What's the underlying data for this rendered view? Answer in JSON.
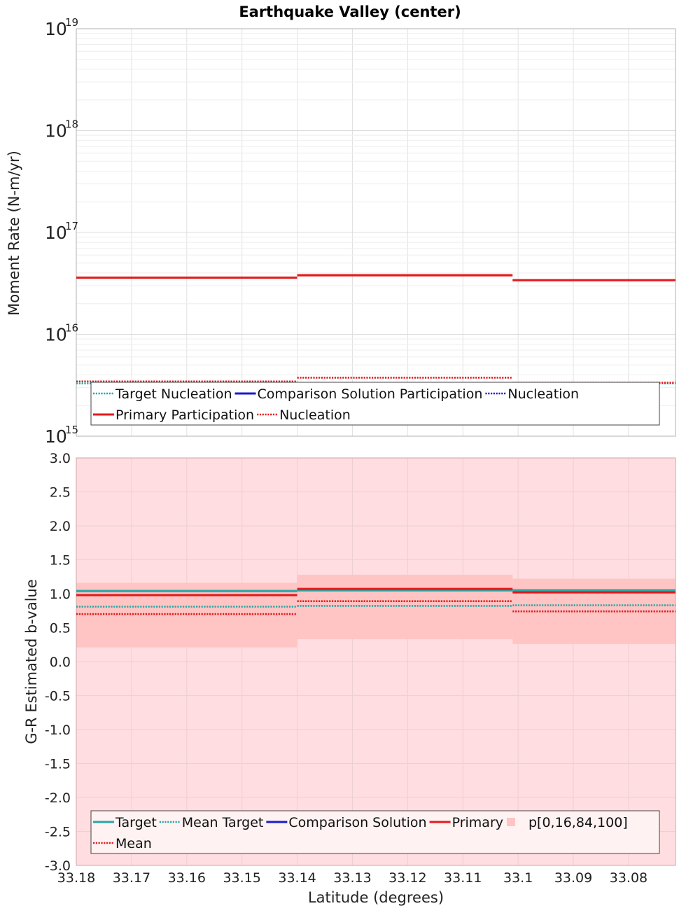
{
  "title": "Earthquake Valley (center)",
  "chart_data": [
    {
      "type": "line",
      "name": "moment-rate",
      "ylabel": "Moment Rate (N-m/yr)",
      "yscale": "log",
      "ylim": [
        1000000000000000.0,
        1e+19
      ],
      "y_ticks": [
        {
          "base": "10",
          "exp": "15"
        },
        {
          "base": "10",
          "exp": "16"
        },
        {
          "base": "10",
          "exp": "17"
        },
        {
          "base": "10",
          "exp": "18"
        },
        {
          "base": "10",
          "exp": "19"
        }
      ],
      "xlim": [
        33.18,
        33.0715
      ],
      "x_bins": [
        [
          33.18,
          33.14
        ],
        [
          33.14,
          33.101
        ],
        [
          33.101,
          33.0715
        ]
      ],
      "series": [
        {
          "name": "Target Nucleation",
          "style": "dotted",
          "color": "#1fa9a9",
          "values": [
            3300000000000000.0,
            3300000000000000.0,
            3300000000000000.0
          ]
        },
        {
          "name": "Comparison Solution Participation",
          "style": "solid",
          "color": "#1a1acc",
          "values": null
        },
        {
          "name": "Nucleation",
          "style": "dotted",
          "color": "#1a1acc",
          "values": null
        },
        {
          "name": "Primary Participation",
          "style": "solid",
          "color": "#e31a1c",
          "values": [
            3.6e+16,
            3.8e+16,
            3.4e+16
          ]
        },
        {
          "name": "Nucleation",
          "style": "dotted",
          "color": "#e31a1c",
          "values": [
            3450000000000000.0,
            3750000000000000.0,
            3350000000000000.0
          ]
        }
      ],
      "legend": {
        "rows": [
          [
            0,
            1,
            2
          ],
          [
            3,
            4
          ]
        ],
        "position": "bottom"
      }
    },
    {
      "type": "line",
      "name": "b-value",
      "ylabel": "G-R Estimated b-value",
      "xlabel": "Latitude (degrees)",
      "ylim": [
        -3.0,
        3.0
      ],
      "y_ticks": [
        "3.0",
        "2.5",
        "2.0",
        "1.5",
        "1.0",
        "0.5",
        "0.0",
        "-0.5",
        "-1.0",
        "-1.5",
        "-2.0",
        "-2.5",
        "-3.0"
      ],
      "x_ticks": [
        "33.18",
        "33.17",
        "33.16",
        "33.15",
        "33.14",
        "33.13",
        "33.12",
        "33.11",
        "33.1",
        "33.09",
        "33.08"
      ],
      "xlim": [
        33.18,
        33.0715
      ],
      "x_bins": [
        [
          33.18,
          33.14
        ],
        [
          33.14,
          33.101
        ],
        [
          33.101,
          33.0715
        ]
      ],
      "series": [
        {
          "name": "Target",
          "style": "solid",
          "color": "#2aa6a6",
          "values": [
            1.04,
            1.05,
            1.05
          ]
        },
        {
          "name": "Mean Target",
          "style": "dotted",
          "color": "#2aa6a6",
          "values": [
            0.81,
            0.82,
            0.83
          ]
        },
        {
          "name": "Comparison Solution",
          "style": "solid",
          "color": "#1a1acc",
          "values": null
        },
        {
          "name": "Primary",
          "style": "solid",
          "color": "#e31a1c",
          "values": [
            0.98,
            1.07,
            1.02
          ]
        },
        {
          "name": "p[0,16,84,100]",
          "style": "band",
          "color": "#ffc4c4",
          "p16": [
            0.21,
            0.33,
            0.26
          ],
          "p84": [
            1.16,
            1.28,
            1.22
          ],
          "p0": -3.0,
          "p100": 3.0
        },
        {
          "name": "Mean",
          "style": "dotted",
          "color": "#e31a1c",
          "values": [
            0.7,
            0.89,
            0.74
          ]
        }
      ],
      "legend": {
        "rows": [
          [
            0,
            1,
            2,
            3,
            4
          ],
          [
            5
          ]
        ],
        "position": "bottom"
      }
    }
  ]
}
